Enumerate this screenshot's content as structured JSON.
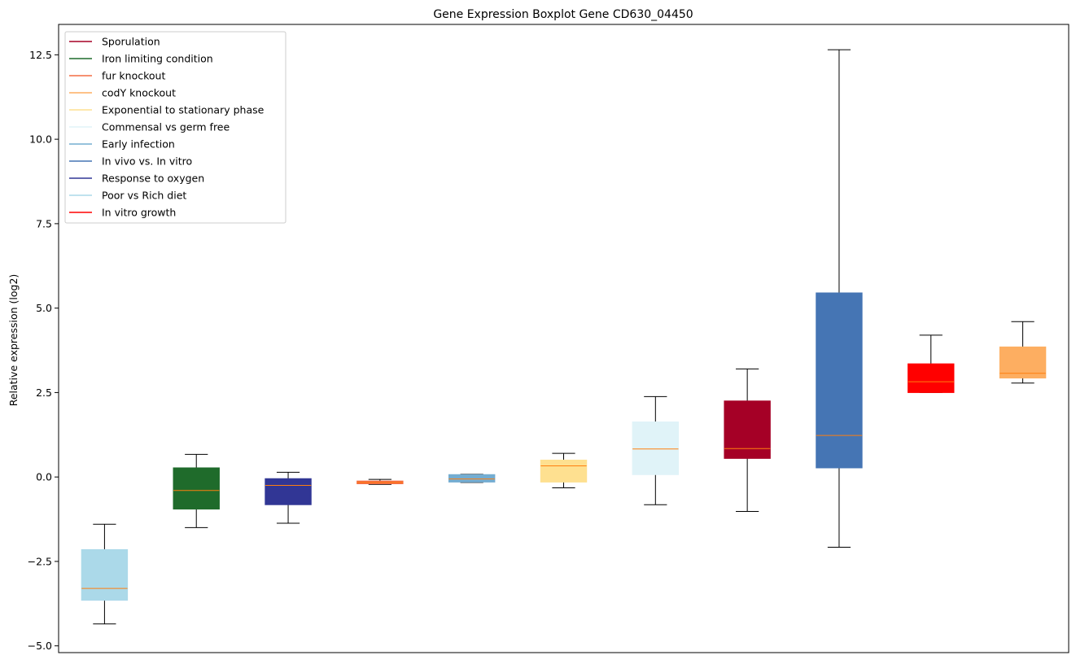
{
  "chart_data": {
    "type": "boxplot",
    "title": "Gene Expression Boxplot Gene CD630_04450",
    "xlabel": "",
    "ylabel": "Relative expression (log2)",
    "ylim": [
      -5.2,
      13.4
    ],
    "yticks": [
      -5.0,
      -2.5,
      0.0,
      2.5,
      5.0,
      7.5,
      10.0,
      12.5
    ],
    "ytick_labels": [
      "−5.0",
      "−2.5",
      "0.0",
      "2.5",
      "5.0",
      "7.5",
      "10.0",
      "12.5"
    ],
    "grid": false,
    "legend_position": "top-left",
    "median_color": "#ff7f0e",
    "legend": [
      {
        "label": "Sporulation",
        "color": "#a50026"
      },
      {
        "label": "Iron limiting condition",
        "color": "#1f6b2b"
      },
      {
        "label": "fur knockout",
        "color": "#f46d43"
      },
      {
        "label": "codY knockout",
        "color": "#fdae61"
      },
      {
        "label": "Exponential to stationary phase",
        "color": "#fee090"
      },
      {
        "label": "Commensal vs germ free",
        "color": "#e0f3f8"
      },
      {
        "label": "Early infection",
        "color": "#74add1"
      },
      {
        "label": "In vivo vs. In vitro",
        "color": "#4575b4"
      },
      {
        "label": "Response to oxygen",
        "color": "#313695"
      },
      {
        "label": "Poor vs Rich diet",
        "color": "#abd9e9"
      },
      {
        "label": "In vitro growth",
        "color": "#ff0000"
      }
    ],
    "boxes": [
      {
        "condition": "Poor vs Rich diet",
        "color": "#abd9e9",
        "whislo": -4.35,
        "q1": -3.65,
        "med": -3.3,
        "q3": -2.15,
        "whishi": -1.4
      },
      {
        "condition": "Iron limiting condition",
        "color": "#1f6b2b",
        "whislo": -1.5,
        "q1": -0.95,
        "med": -0.4,
        "q3": 0.27,
        "whishi": 0.67
      },
      {
        "condition": "Response to oxygen",
        "color": "#313695",
        "whislo": -1.37,
        "q1": -0.82,
        "med": -0.25,
        "q3": -0.05,
        "whishi": 0.14
      },
      {
        "condition": "fur knockout",
        "color": "#f46d43",
        "whislo": -0.22,
        "q1": -0.2,
        "med": -0.16,
        "q3": -0.12,
        "whishi": -0.07
      },
      {
        "condition": "Early infection",
        "color": "#74add1",
        "whislo": -0.16,
        "q1": -0.15,
        "med": -0.06,
        "q3": 0.07,
        "whishi": 0.08
      },
      {
        "condition": "Exponential to stationary phase",
        "color": "#fee090",
        "whislo": -0.32,
        "q1": -0.15,
        "med": 0.33,
        "q3": 0.5,
        "whishi": 0.7
      },
      {
        "condition": "Commensal vs germ free",
        "color": "#e0f3f8",
        "whislo": -0.82,
        "q1": 0.07,
        "med": 0.83,
        "q3": 1.63,
        "whishi": 2.38
      },
      {
        "condition": "Sporulation",
        "color": "#a50026",
        "whislo": -1.02,
        "q1": 0.55,
        "med": 0.84,
        "q3": 2.25,
        "whishi": 3.2
      },
      {
        "condition": "In vivo vs. In vitro",
        "color": "#4575b4",
        "whislo": -2.08,
        "q1": 0.27,
        "med": 1.23,
        "q3": 5.45,
        "whishi": 12.65
      },
      {
        "condition": "In vitro growth",
        "color": "#ff0000",
        "whislo": 2.5,
        "q1": 2.5,
        "med": 2.82,
        "q3": 3.35,
        "whishi": 4.2
      },
      {
        "condition": "codY knockout",
        "color": "#fdae61",
        "whislo": 2.78,
        "q1": 2.93,
        "med": 3.07,
        "q3": 3.85,
        "whishi": 4.6
      }
    ]
  }
}
